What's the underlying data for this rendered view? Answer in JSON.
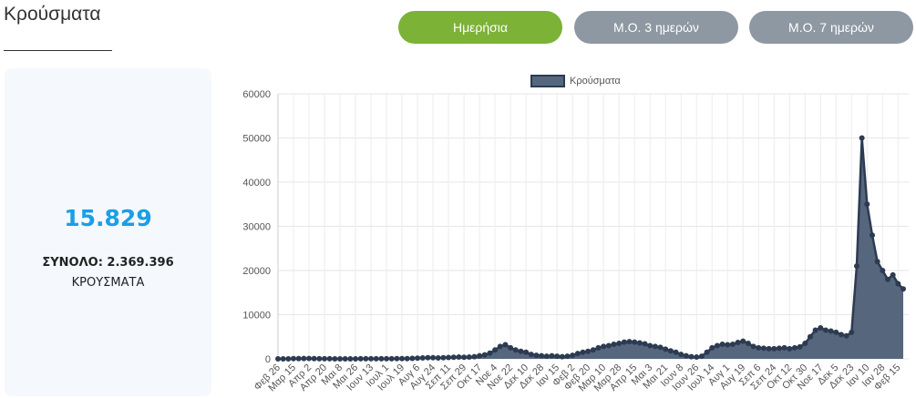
{
  "header": {
    "title": "Κρούσματα"
  },
  "buttons": [
    "Ημερήσια",
    "Μ.Ο. 3 ημερών",
    "Μ.Ο. 7 ημερών"
  ],
  "summary": {
    "today": "15.829",
    "total": "ΣΥΝΟΛΟ: 2.369.396",
    "label": "ΚΡΟΥΣΜΑΤΑ"
  },
  "chart_data": {
    "type": "area",
    "categories": [
      "Φεβ 26",
      null,
      null,
      "Μαρ 15",
      null,
      null,
      "Απρ 2",
      null,
      null,
      "Απρ 20",
      null,
      null,
      "Μαι 8",
      null,
      null,
      "Μαι 26",
      null,
      null,
      "Ιουν 13",
      null,
      null,
      "Ιουλ 1",
      null,
      null,
      "Ιουλ 19",
      null,
      null,
      "Αυγ 6",
      null,
      null,
      "Αυγ 24",
      null,
      null,
      "Σεπ 11",
      null,
      null,
      "Σεπ 29",
      null,
      null,
      "Οκτ 17",
      null,
      null,
      "Νοε 4",
      null,
      null,
      "Νοε 22",
      null,
      null,
      "Δεκ 10",
      null,
      null,
      "Δεκ 28",
      null,
      null,
      "Ιαν 15",
      null,
      null,
      "Φεβ 2",
      null,
      null,
      "Φεβ 20",
      null,
      null,
      "Μαρ 10",
      null,
      null,
      "Μαρ 28",
      null,
      null,
      "Απρ 15",
      null,
      null,
      "Μαι 3",
      null,
      null,
      "Μαι 21",
      null,
      null,
      "Ιουν 8",
      null,
      null,
      "Ιουν 26",
      null,
      null,
      "Ιουλ 14",
      null,
      null,
      "Αυγ 1",
      null,
      null,
      "Αυγ 19",
      null,
      null,
      "Σεπ 6",
      null,
      null,
      "Σεπ 24",
      null,
      null,
      "Οκτ 12",
      null,
      null,
      "Οκτ 30",
      null,
      null,
      "Νοε 17",
      null,
      null,
      "Δεκ 5",
      null,
      null,
      "Δεκ 23",
      null,
      null,
      "Ιαν 10",
      null,
      null,
      "Ιαν 28",
      null,
      null,
      "Φεβ 15",
      null
    ],
    "series": [
      {
        "name": "Κρούσματα",
        "color": "#56667d",
        "line_color": "#2c3b52",
        "values": [
          0,
          0,
          0,
          50,
          60,
          80,
          90,
          60,
          30,
          20,
          15,
          10,
          10,
          10,
          10,
          10,
          15,
          20,
          15,
          20,
          25,
          20,
          30,
          40,
          40,
          50,
          100,
          150,
          200,
          250,
          250,
          200,
          250,
          300,
          350,
          400,
          350,
          400,
          500,
          700,
          900,
          1300,
          2000,
          2800,
          3200,
          2500,
          2000,
          1700,
          1500,
          1000,
          800,
          700,
          600,
          700,
          600,
          500,
          600,
          800,
          1200,
          1500,
          1700,
          2000,
          2500,
          2800,
          3000,
          3300,
          3500,
          3800,
          3900,
          3800,
          3600,
          3400,
          3000,
          2800,
          2600,
          2200,
          1800,
          1500,
          1000,
          700,
          500,
          400,
          600,
          1500,
          2500,
          3000,
          3300,
          3200,
          3300,
          3700,
          4000,
          3500,
          2800,
          2500,
          2400,
          2300,
          2300,
          2400,
          2500,
          2300,
          2500,
          2700,
          3500,
          5000,
          6500,
          7000,
          6500,
          6300,
          6000,
          5500,
          5200,
          6000,
          21000,
          50000,
          35000,
          28000,
          22000,
          20000,
          18000,
          19000,
          17000,
          15829
        ]
      }
    ],
    "ylim": [
      0,
      60000
    ],
    "yticks": [
      0,
      10000,
      20000,
      30000,
      40000,
      50000,
      60000
    ],
    "grid": true,
    "legend": "top"
  }
}
